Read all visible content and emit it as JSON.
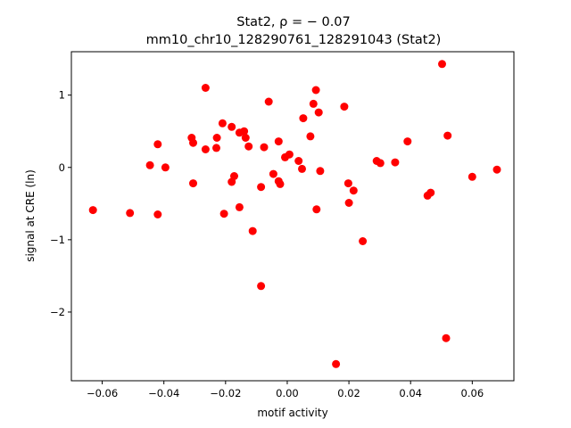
{
  "chart_data": {
    "type": "scatter",
    "title_line1": "Stat2, ρ = − 0.07",
    "title_line2": "mm10_chr10_128290761_128291043 (Stat2)",
    "xlabel": "motif activity",
    "ylabel": "signal at CRE (ln)",
    "xlim": [
      -0.07,
      0.0735
    ],
    "ylim": [
      -2.95,
      1.6
    ],
    "xticks": [
      -0.06,
      -0.04,
      -0.02,
      0.0,
      0.02,
      0.04,
      0.06
    ],
    "xtick_labels": [
      "−0.06",
      "−0.04",
      "−0.02",
      "0.00",
      "0.02",
      "0.04",
      "0.06"
    ],
    "yticks": [
      1,
      0,
      -1,
      -2
    ],
    "ytick_labels": [
      "1",
      "0",
      "−1",
      "−2"
    ],
    "grid": false,
    "marker_color": "#ff0000",
    "points": [
      {
        "x": -0.063,
        "y": -0.59
      },
      {
        "x": -0.051,
        "y": -0.63
      },
      {
        "x": -0.0445,
        "y": 0.03
      },
      {
        "x": -0.042,
        "y": 0.32
      },
      {
        "x": -0.042,
        "y": -0.65
      },
      {
        "x": -0.0395,
        "y": 0.0
      },
      {
        "x": -0.031,
        "y": 0.41
      },
      {
        "x": -0.0305,
        "y": 0.34
      },
      {
        "x": -0.0305,
        "y": -0.22
      },
      {
        "x": -0.0265,
        "y": 1.1
      },
      {
        "x": -0.0265,
        "y": 0.25
      },
      {
        "x": -0.023,
        "y": 0.27
      },
      {
        "x": -0.0228,
        "y": 0.41
      },
      {
        "x": -0.021,
        "y": 0.61
      },
      {
        "x": -0.0205,
        "y": -0.64
      },
      {
        "x": -0.018,
        "y": 0.56
      },
      {
        "x": -0.018,
        "y": -0.2
      },
      {
        "x": -0.0172,
        "y": -0.12
      },
      {
        "x": -0.0155,
        "y": -0.55
      },
      {
        "x": -0.0155,
        "y": 0.48
      },
      {
        "x": -0.014,
        "y": 0.5
      },
      {
        "x": -0.0135,
        "y": 0.41
      },
      {
        "x": -0.0125,
        "y": 0.29
      },
      {
        "x": -0.0112,
        "y": -0.88
      },
      {
        "x": -0.0085,
        "y": -0.27
      },
      {
        "x": -0.0085,
        "y": -1.64
      },
      {
        "x": -0.0075,
        "y": 0.28
      },
      {
        "x": -0.006,
        "y": 0.91
      },
      {
        "x": -0.0045,
        "y": -0.09
      },
      {
        "x": -0.0028,
        "y": 0.36
      },
      {
        "x": -0.0028,
        "y": -0.19
      },
      {
        "x": -0.0023,
        "y": -0.23
      },
      {
        "x": -0.0007,
        "y": 0.14
      },
      {
        "x": 0.0007,
        "y": 0.18
      },
      {
        "x": 0.0037,
        "y": 0.09
      },
      {
        "x": 0.0048,
        "y": -0.02
      },
      {
        "x": 0.0052,
        "y": 0.68
      },
      {
        "x": 0.0075,
        "y": 0.43
      },
      {
        "x": 0.0085,
        "y": 0.88
      },
      {
        "x": 0.0093,
        "y": 1.07
      },
      {
        "x": 0.0095,
        "y": -0.58
      },
      {
        "x": 0.0102,
        "y": 0.76
      },
      {
        "x": 0.0107,
        "y": -0.05
      },
      {
        "x": 0.0158,
        "y": -2.72
      },
      {
        "x": 0.0185,
        "y": 0.84
      },
      {
        "x": 0.0198,
        "y": -0.22
      },
      {
        "x": 0.02,
        "y": -0.49
      },
      {
        "x": 0.0215,
        "y": -0.32
      },
      {
        "x": 0.0245,
        "y": -1.02
      },
      {
        "x": 0.029,
        "y": 0.09
      },
      {
        "x": 0.0302,
        "y": 0.06
      },
      {
        "x": 0.035,
        "y": 0.07
      },
      {
        "x": 0.039,
        "y": 0.36
      },
      {
        "x": 0.0455,
        "y": -0.39
      },
      {
        "x": 0.0465,
        "y": -0.35
      },
      {
        "x": 0.0502,
        "y": 1.43
      },
      {
        "x": 0.0515,
        "y": -2.36
      },
      {
        "x": 0.052,
        "y": 0.44
      },
      {
        "x": 0.06,
        "y": -0.13
      },
      {
        "x": 0.068,
        "y": -0.03
      }
    ]
  }
}
